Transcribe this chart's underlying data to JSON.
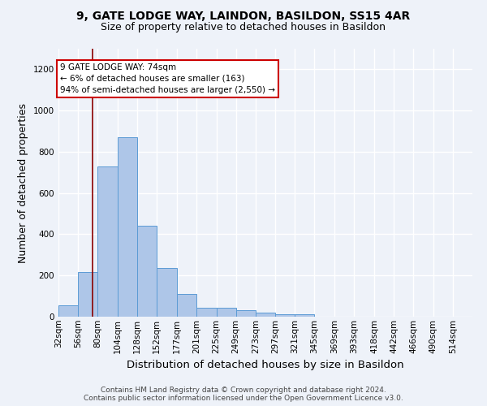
{
  "title_line1": "9, GATE LODGE WAY, LAINDON, BASILDON, SS15 4AR",
  "title_line2": "Size of property relative to detached houses in Basildon",
  "xlabel": "Distribution of detached houses by size in Basildon",
  "ylabel": "Number of detached properties",
  "footer_line1": "Contains HM Land Registry data © Crown copyright and database right 2024.",
  "footer_line2": "Contains public sector information licensed under the Open Government Licence v3.0.",
  "annotation_line1": "9 GATE LODGE WAY: 74sqm",
  "annotation_line2": "← 6% of detached houses are smaller (163)",
  "annotation_line3": "94% of semi-detached houses are larger (2,550) →",
  "bar_color": "#aec6e8",
  "bar_edge_color": "#5b9bd5",
  "vline_color": "#8b0000",
  "vline_x": 74,
  "annotation_box_color": "#ffffff",
  "annotation_box_edge": "#cc0000",
  "categories": [
    "32sqm",
    "56sqm",
    "80sqm",
    "104sqm",
    "128sqm",
    "152sqm",
    "177sqm",
    "201sqm",
    "225sqm",
    "249sqm",
    "273sqm",
    "297sqm",
    "321sqm",
    "345sqm",
    "369sqm",
    "393sqm",
    "418sqm",
    "442sqm",
    "466sqm",
    "490sqm",
    "514sqm"
  ],
  "bin_edges": [
    32,
    56,
    80,
    104,
    128,
    152,
    177,
    201,
    225,
    249,
    273,
    297,
    321,
    345,
    369,
    393,
    418,
    442,
    466,
    490,
    514
  ],
  "bin_width": 24,
  "values": [
    55,
    215,
    730,
    870,
    440,
    235,
    110,
    45,
    42,
    30,
    20,
    12,
    12,
    0,
    0,
    0,
    0,
    0,
    0,
    0,
    0
  ],
  "ylim": [
    0,
    1300
  ],
  "yticks": [
    0,
    200,
    400,
    600,
    800,
    1000,
    1200
  ],
  "background_color": "#eef2f9",
  "plot_background": "#eef2f9",
  "grid_color": "#ffffff",
  "title_fontsize": 10,
  "subtitle_fontsize": 9,
  "axis_label_fontsize": 9,
  "tick_fontsize": 7.5,
  "annotation_fontsize": 7.5,
  "footer_fontsize": 6.5
}
